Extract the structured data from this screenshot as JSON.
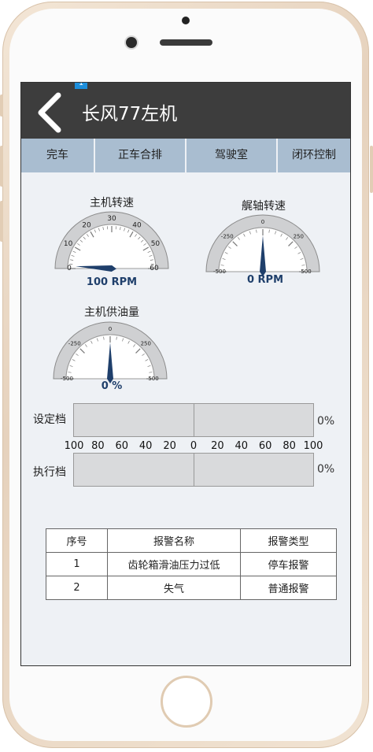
{
  "header": {
    "title": "长风77左机",
    "badge": "1"
  },
  "tabs": [
    {
      "label": "完车"
    },
    {
      "label": "正车合排"
    },
    {
      "label": "驾驶室"
    },
    {
      "label": "闭环控制"
    }
  ],
  "gauges": {
    "engine_speed": {
      "title": "主机转速",
      "value_text": "100 RPM",
      "value": 100,
      "min": 0,
      "max": 60,
      "ticks": [
        "0",
        "10",
        "20",
        "30",
        "40",
        "50",
        "60"
      ]
    },
    "shaft_speed": {
      "title": "艉轴转速",
      "value_text": "0 RPM",
      "value": 0,
      "min": -500,
      "max": 500,
      "ticks": [
        "-500",
        "-250",
        "0",
        "250",
        "500"
      ]
    },
    "fuel_supply": {
      "title": "主机供油量",
      "value_text": "0 %",
      "value": 0,
      "min": -500,
      "max": 500,
      "ticks": [
        "-500",
        "-250",
        "0",
        "250",
        "500"
      ]
    }
  },
  "gear_bars": {
    "setpoint": {
      "label": "设定档",
      "percent_text": "0%",
      "value": 0
    },
    "actual": {
      "label": "执行档",
      "percent_text": "0%",
      "value": 0
    },
    "scale": [
      "100",
      "80",
      "60",
      "40",
      "20",
      "0",
      "20",
      "40",
      "60",
      "80",
      "100"
    ]
  },
  "alarm_table": {
    "headers": [
      "序号",
      "报警名称",
      "报警类型"
    ],
    "rows": [
      [
        "1",
        "齿轮箱滑油压力过低",
        "停车报警"
      ],
      [
        "2",
        "失气",
        "普通报警"
      ]
    ]
  }
}
